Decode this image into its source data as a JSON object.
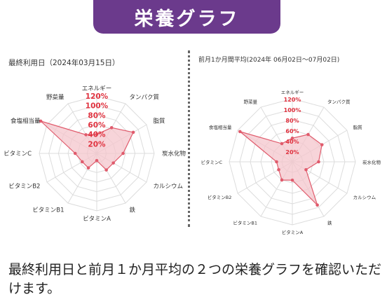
{
  "header": {
    "title": "栄養グラフ"
  },
  "left_panel": {
    "label": "最終利用日（2024年03月15日）"
  },
  "right_panel": {
    "label": "前月1か月間平均(2024年 06月02日～07月02日)"
  },
  "caption": "最終利用日と前月１か月平均の２つの栄養グラフを確認いただけます。",
  "colors": {
    "accent": "#6b3a8c",
    "fill": "#f4c6cc",
    "line": "#e05b6c",
    "pct_text": "#e0323f",
    "grid": "#dcdcdc"
  },
  "chart_data": [
    {
      "type": "radar",
      "axes": [
        "エネルギー",
        "タンパク質",
        "脂質",
        "炭水化物",
        "カルシウム",
        "鉄",
        "ビタミンA",
        "ビタミンB1",
        "ビタミンB2",
        "ビタミンC",
        "食塩相当量",
        "野菜量"
      ],
      "rings": [
        "20%",
        "40%",
        "60%",
        "80%",
        "100%",
        "120%"
      ],
      "ylim": [
        0,
        120
      ],
      "values": [
        40,
        62,
        88,
        55,
        40,
        40,
        15,
        35,
        35,
        45,
        135,
        45
      ]
    },
    {
      "type": "radar",
      "axes": [
        "エネルギー",
        "タンパク質",
        "脂質",
        "炭水化物",
        "カルシウム",
        "鉄",
        "ビタミンA",
        "ビタミンB1",
        "ビタミンB2",
        "ビタミンC",
        "食塩相当量",
        "野菜量"
      ],
      "rings": [
        "20%",
        "40%",
        "60%",
        "80%",
        "100%",
        "120%"
      ],
      "ylim": [
        0,
        120
      ],
      "values": [
        45,
        60,
        65,
        50,
        30,
        95,
        35,
        40,
        30,
        30,
        115,
        40
      ]
    }
  ]
}
